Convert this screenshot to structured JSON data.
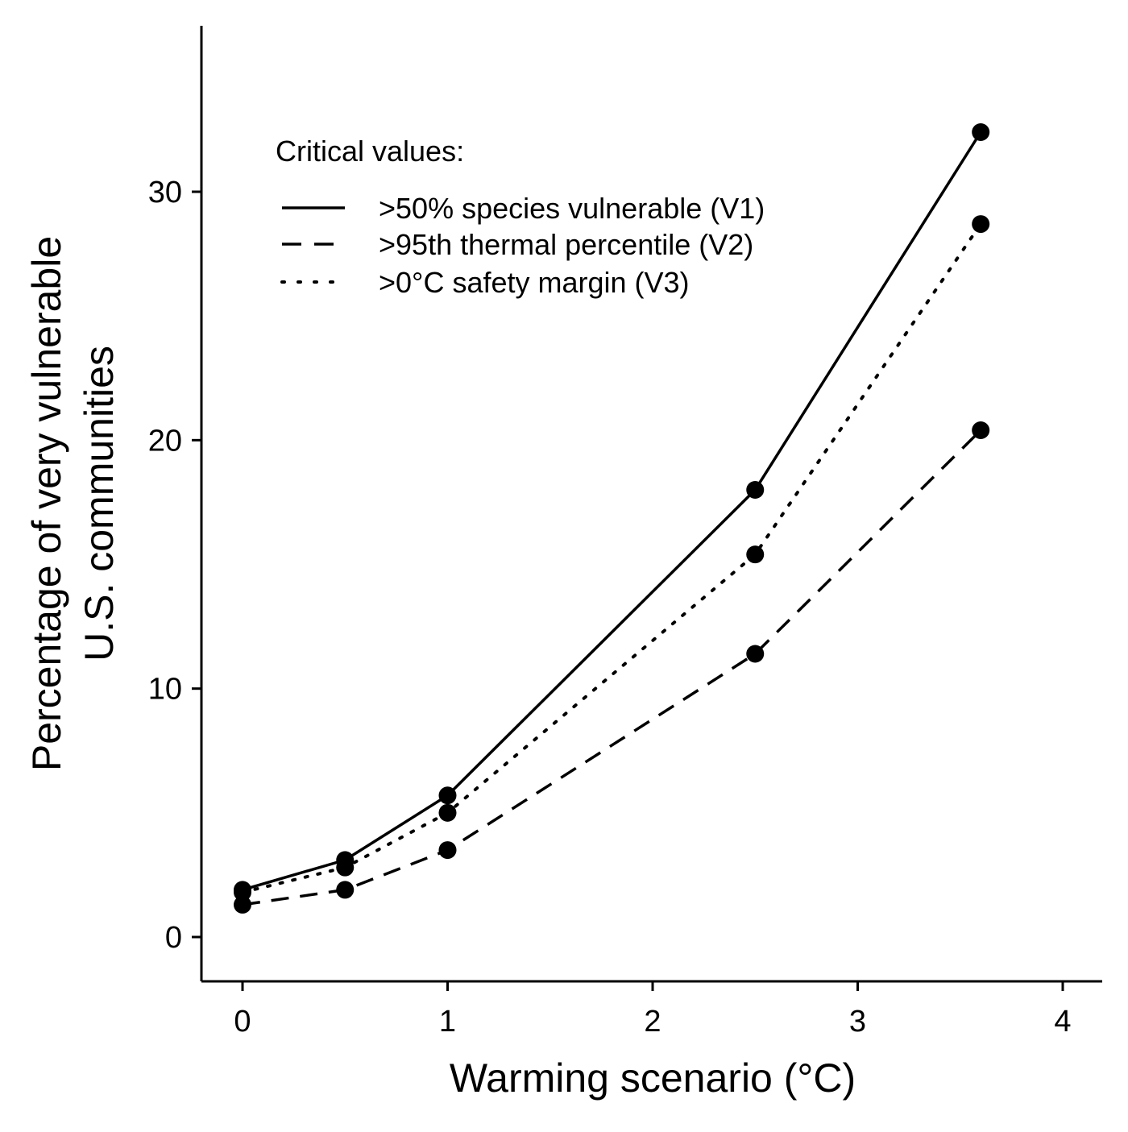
{
  "chart_data": {
    "type": "line",
    "title": "",
    "xlabel": "Warming scenario (°C)",
    "ylabel_line1": "Percentage of very vulnerable",
    "ylabel_line2": "U.S. communities",
    "xlim": [
      -0.2,
      4.2
    ],
    "ylim": [
      -1.7,
      34.5
    ],
    "x_ticks": [
      0,
      1,
      2,
      3,
      4
    ],
    "y_ticks": [
      0,
      10,
      20,
      30
    ],
    "x": [
      0,
      0.5,
      1,
      2.5,
      3.6
    ],
    "grid": false,
    "legend": {
      "title": "Critical values:",
      "position": "top-left"
    },
    "series": [
      {
        "name": ">50% species vulnerable (V1)",
        "style": "solid",
        "values": [
          1.9,
          3.1,
          5.7,
          18.0,
          32.4
        ]
      },
      {
        "name": ">95th thermal percentile (V2)",
        "style": "dashed",
        "values": [
          1.3,
          1.9,
          3.5,
          11.4,
          20.4
        ]
      },
      {
        "name": ">0°C safety margin (V3)",
        "style": "dotted",
        "values": [
          1.8,
          2.8,
          5.0,
          15.4,
          28.7
        ]
      }
    ],
    "colors": {
      "line": "#000000",
      "background": "#ffffff"
    }
  }
}
